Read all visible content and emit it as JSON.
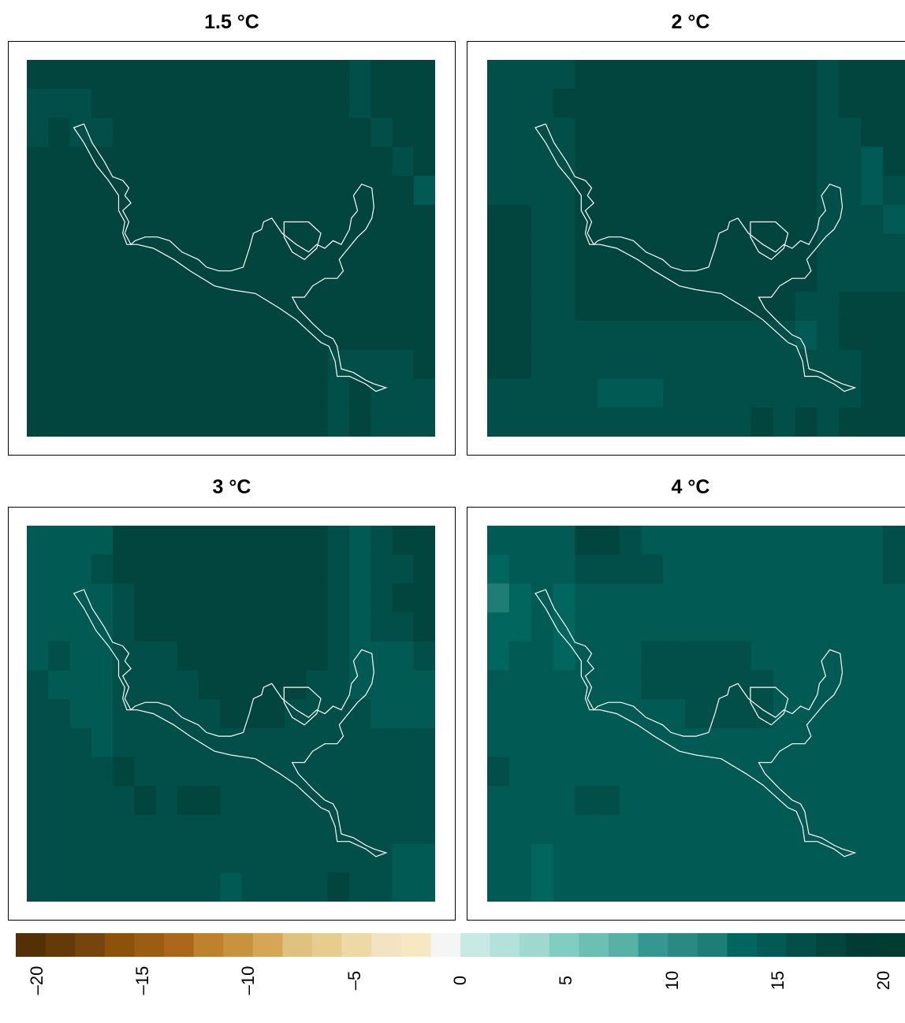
{
  "chart_data": [
    {
      "type": "heatmap",
      "title": "1.5 °C",
      "grid_cols": 19,
      "grid_rows": 13,
      "values": [
        [
          17,
          17,
          17,
          17,
          17,
          17,
          17,
          17,
          17,
          17,
          17,
          17,
          17,
          17,
          17,
          16,
          17,
          17,
          17
        ],
        [
          16,
          16,
          16,
          17,
          17,
          17,
          17,
          17,
          17,
          17,
          17,
          17,
          17,
          17,
          17,
          16,
          17,
          17,
          17
        ],
        [
          16,
          17,
          16,
          16,
          17,
          17,
          17,
          17,
          17,
          17,
          17,
          17,
          17,
          17,
          17,
          17,
          16,
          17,
          17
        ],
        [
          17,
          17,
          17,
          17,
          17,
          17,
          17,
          17,
          17,
          17,
          17,
          17,
          17,
          17,
          17,
          17,
          17,
          16,
          17
        ],
        [
          17,
          17,
          17,
          17,
          17,
          17,
          17,
          17,
          17,
          17,
          17,
          17,
          17,
          17,
          17,
          17,
          17,
          17,
          15
        ],
        [
          17,
          17,
          17,
          17,
          17,
          17,
          17,
          17,
          17,
          17,
          17,
          17,
          17,
          17,
          17,
          17,
          17,
          17,
          17
        ],
        [
          17,
          17,
          17,
          17,
          17,
          17,
          17,
          17,
          17,
          17,
          17,
          17,
          17,
          17,
          17,
          17,
          17,
          17,
          17
        ],
        [
          17,
          17,
          17,
          17,
          17,
          17,
          17,
          17,
          17,
          17,
          17,
          17,
          17,
          17,
          17,
          17,
          17,
          17,
          17
        ],
        [
          17,
          17,
          17,
          17,
          17,
          17,
          17,
          17,
          17,
          17,
          17,
          17,
          17,
          17,
          17,
          17,
          17,
          17,
          17
        ],
        [
          17,
          17,
          17,
          17,
          17,
          17,
          17,
          17,
          17,
          17,
          17,
          17,
          17,
          17,
          17,
          17,
          17,
          17,
          17
        ],
        [
          17,
          17,
          17,
          17,
          17,
          17,
          17,
          17,
          17,
          17,
          17,
          17,
          17,
          17,
          16,
          16,
          16,
          16,
          17
        ],
        [
          17,
          17,
          17,
          17,
          17,
          17,
          17,
          17,
          17,
          17,
          17,
          17,
          17,
          17,
          16,
          17,
          16,
          16,
          16
        ],
        [
          17,
          17,
          17,
          17,
          17,
          17,
          17,
          17,
          17,
          17,
          17,
          17,
          17,
          17,
          16,
          17,
          16,
          16,
          16
        ]
      ]
    },
    {
      "type": "heatmap",
      "title": "2 °C",
      "grid_cols": 19,
      "grid_rows": 13,
      "values": [
        [
          16,
          16,
          16,
          16,
          17,
          17,
          17,
          17,
          17,
          17,
          17,
          17,
          17,
          17,
          17,
          16,
          17,
          17,
          17
        ],
        [
          16,
          16,
          16,
          17,
          17,
          17,
          17,
          17,
          17,
          17,
          17,
          17,
          17,
          17,
          17,
          16,
          17,
          17,
          17
        ],
        [
          16,
          16,
          16,
          16,
          17,
          17,
          17,
          17,
          17,
          17,
          17,
          17,
          17,
          17,
          17,
          16,
          16,
          17,
          17
        ],
        [
          16,
          16,
          16,
          16,
          17,
          17,
          17,
          17,
          17,
          17,
          17,
          17,
          17,
          17,
          17,
          16,
          16,
          15,
          17
        ],
        [
          16,
          16,
          16,
          16,
          17,
          17,
          17,
          17,
          17,
          17,
          17,
          17,
          17,
          17,
          17,
          16,
          16,
          15,
          16
        ],
        [
          17,
          17,
          16,
          16,
          17,
          17,
          17,
          17,
          17,
          17,
          17,
          17,
          17,
          17,
          17,
          16,
          16,
          16,
          15
        ],
        [
          17,
          17,
          16,
          16,
          17,
          17,
          17,
          17,
          17,
          17,
          17,
          17,
          17,
          17,
          17,
          16,
          16,
          16,
          16
        ],
        [
          17,
          17,
          16,
          16,
          17,
          17,
          17,
          17,
          17,
          17,
          17,
          17,
          17,
          17,
          17,
          16,
          16,
          16,
          16
        ],
        [
          17,
          17,
          16,
          16,
          17,
          17,
          17,
          17,
          17,
          17,
          17,
          17,
          17,
          17,
          16,
          16,
          17,
          17,
          17
        ],
        [
          17,
          17,
          16,
          16,
          16,
          16,
          16,
          16,
          16,
          16,
          16,
          16,
          16,
          16,
          15,
          16,
          17,
          17,
          17
        ],
        [
          17,
          17,
          16,
          16,
          16,
          16,
          16,
          16,
          16,
          16,
          16,
          16,
          16,
          16,
          16,
          16,
          16,
          17,
          17
        ],
        [
          16,
          16,
          16,
          16,
          16,
          15,
          15,
          15,
          16,
          16,
          16,
          16,
          16,
          16,
          16,
          16,
          16,
          17,
          17
        ],
        [
          16,
          16,
          16,
          16,
          16,
          16,
          16,
          16,
          16,
          16,
          16,
          16,
          17,
          16,
          17,
          16,
          17,
          17,
          17
        ]
      ]
    },
    {
      "type": "heatmap",
      "title": "3 °C",
      "grid_cols": 19,
      "grid_rows": 13,
      "values": [
        [
          15,
          15,
          15,
          15,
          17,
          17,
          17,
          17,
          17,
          17,
          17,
          17,
          17,
          17,
          16,
          15,
          16,
          17,
          18
        ],
        [
          14,
          14,
          15,
          16,
          17,
          17,
          17,
          17,
          17,
          17,
          17,
          17,
          17,
          17,
          16,
          15,
          16,
          16,
          18
        ],
        [
          14,
          14,
          14,
          15,
          16,
          17,
          17,
          17,
          17,
          17,
          17,
          17,
          17,
          17,
          16,
          15,
          16,
          17,
          17
        ],
        [
          15,
          15,
          15,
          15,
          16,
          17,
          17,
          17,
          17,
          17,
          17,
          17,
          17,
          17,
          16,
          15,
          16,
          16,
          17
        ],
        [
          15,
          16,
          15,
          15,
          16,
          16,
          16,
          17,
          17,
          17,
          17,
          17,
          17,
          17,
          16,
          15,
          15,
          15,
          16
        ],
        [
          16,
          15,
          15,
          15,
          16,
          16,
          16,
          16,
          17,
          17,
          17,
          17,
          17,
          16,
          16,
          15,
          15,
          15,
          14
        ],
        [
          16,
          16,
          15,
          15,
          16,
          16,
          16,
          16,
          16,
          17,
          17,
          17,
          16,
          16,
          16,
          16,
          15,
          15,
          15
        ],
        [
          16,
          16,
          16,
          15,
          16,
          16,
          16,
          16,
          16,
          16,
          16,
          16,
          16,
          16,
          16,
          16,
          16,
          16,
          16
        ],
        [
          16,
          16,
          16,
          16,
          17,
          16,
          16,
          16,
          16,
          16,
          16,
          16,
          16,
          16,
          16,
          16,
          16,
          16,
          16
        ],
        [
          16,
          16,
          16,
          16,
          16,
          17,
          16,
          17,
          17,
          16,
          16,
          16,
          16,
          16,
          16,
          16,
          16,
          16,
          16
        ],
        [
          16,
          16,
          16,
          16,
          16,
          16,
          16,
          16,
          16,
          16,
          16,
          16,
          16,
          16,
          16,
          16,
          16,
          16,
          16
        ],
        [
          16,
          16,
          16,
          16,
          16,
          16,
          16,
          16,
          16,
          16,
          16,
          16,
          16,
          16,
          16,
          16,
          16,
          15,
          15
        ],
        [
          16,
          16,
          16,
          16,
          16,
          16,
          16,
          16,
          16,
          15,
          16,
          16,
          16,
          16,
          17,
          16,
          16,
          15,
          15
        ]
      ]
    },
    {
      "type": "heatmap",
      "title": "4 °C",
      "grid_cols": 19,
      "grid_rows": 13,
      "values": [
        [
          14,
          14,
          14,
          15,
          17,
          17,
          16,
          15,
          15,
          15,
          15,
          15,
          15,
          15,
          15,
          14,
          15,
          15,
          16
        ],
        [
          13,
          14,
          14,
          15,
          16,
          16,
          16,
          16,
          15,
          15,
          15,
          15,
          15,
          15,
          15,
          14,
          15,
          15,
          16
        ],
        [
          12,
          13,
          14,
          13,
          15,
          15,
          15,
          15,
          15,
          15,
          15,
          15,
          15,
          15,
          15,
          14,
          15,
          15,
          15
        ],
        [
          13,
          13,
          14,
          13,
          15,
          15,
          15,
          15,
          15,
          15,
          15,
          15,
          15,
          15,
          15,
          14,
          15,
          15,
          15
        ],
        [
          13,
          14,
          14,
          13,
          15,
          15,
          15,
          16,
          16,
          16,
          16,
          16,
          15,
          15,
          15,
          15,
          15,
          15,
          14
        ],
        [
          14,
          14,
          14,
          14,
          15,
          15,
          15,
          16,
          16,
          16,
          16,
          16,
          16,
          15,
          15,
          15,
          15,
          15,
          14
        ],
        [
          15,
          15,
          14,
          14,
          15,
          15,
          15,
          15,
          15,
          16,
          16,
          16,
          16,
          15,
          15,
          15,
          15,
          15,
          14
        ],
        [
          15,
          15,
          14,
          14,
          15,
          15,
          15,
          15,
          15,
          15,
          15,
          15,
          15,
          15,
          15,
          15,
          15,
          15,
          15
        ],
        [
          16,
          15,
          14,
          14,
          15,
          15,
          15,
          15,
          15,
          15,
          15,
          15,
          15,
          15,
          15,
          15,
          15,
          15,
          15
        ],
        [
          15,
          15,
          14,
          14,
          16,
          16,
          15,
          15,
          15,
          15,
          15,
          15,
          15,
          15,
          15,
          14,
          15,
          15,
          15
        ],
        [
          15,
          14,
          14,
          14,
          15,
          15,
          15,
          15,
          15,
          15,
          15,
          15,
          15,
          15,
          15,
          15,
          14,
          15,
          15
        ],
        [
          14,
          14,
          13,
          14,
          15,
          15,
          15,
          15,
          15,
          15,
          15,
          15,
          15,
          15,
          15,
          15,
          14,
          14,
          15
        ],
        [
          14,
          14,
          13,
          14,
          15,
          15,
          15,
          15,
          15,
          15,
          15,
          15,
          15,
          15,
          15,
          15,
          14,
          15,
          15
        ]
      ]
    }
  ],
  "colorbar": {
    "min": -21,
    "max": 21,
    "ticks": [
      "–20",
      "–15",
      "–10",
      "–5",
      "0",
      "5",
      "10",
      "15",
      "20"
    ],
    "tick_values": [
      -20,
      -15,
      -10,
      -5,
      0,
      5,
      10,
      15,
      20
    ],
    "colors": [
      "#543005",
      "#643a09",
      "#75450d",
      "#8c510a",
      "#9c5c12",
      "#ac671a",
      "#bf812d",
      "#c9923f",
      "#d4a656",
      "#dfc27d",
      "#e6cd8e",
      "#ecd9a6",
      "#f2e4c0",
      "#f6e8c3",
      "#f5f5f5",
      "#c7eae5",
      "#b3e2db",
      "#9ed8cf",
      "#80cdc1",
      "#6cbfb3",
      "#57b1a5",
      "#35978f",
      "#2a8a82",
      "#1e7d75",
      "#01665e",
      "#015a53",
      "#014f48",
      "#01453e",
      "#013b34",
      "#003c30"
    ]
  }
}
